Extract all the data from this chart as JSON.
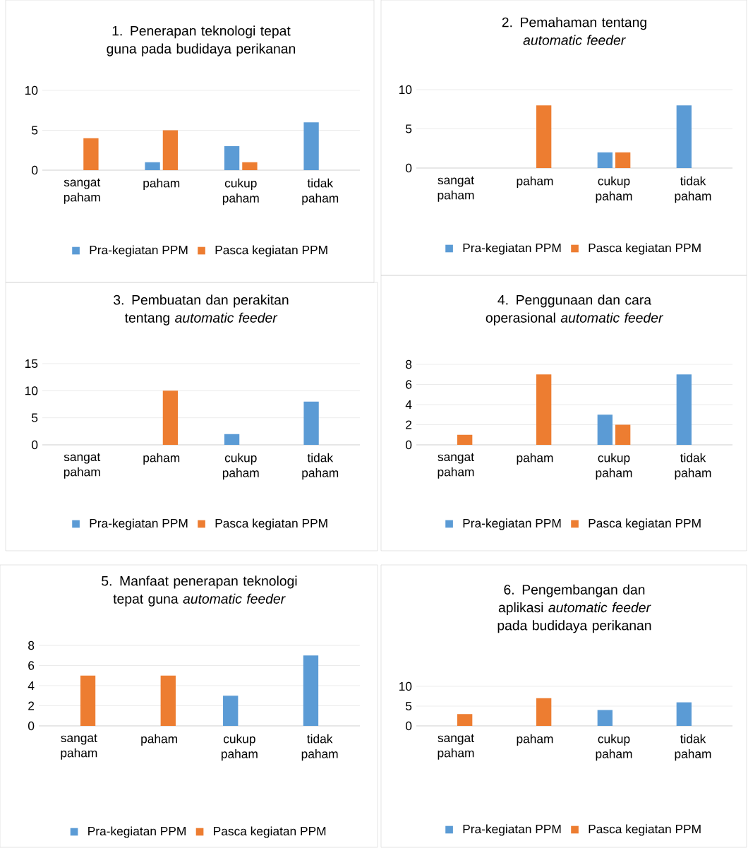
{
  "chart_data": [
    {
      "type": "bar",
      "title": "1. Penerapan teknologi tepat guna pada budidaya perikanan",
      "categories": [
        "sangat paham",
        "paham",
        "cukup paham",
        "tidak paham"
      ],
      "series": [
        {
          "name": "Pra-kegiatan PPM",
          "color": "#5b9bd5",
          "values": [
            0,
            1,
            3,
            6
          ]
        },
        {
          "name": "Pasca kegiatan PPM",
          "color": "#ed7d31",
          "values": [
            4,
            5,
            1,
            0
          ]
        }
      ],
      "ylim": [
        0,
        10
      ],
      "yticks": [
        0,
        5,
        10
      ],
      "grid": "y",
      "legend": "bottom"
    },
    {
      "type": "bar",
      "title": "2. Pemahaman tentang *automatic feeder*",
      "categories": [
        "sangat paham",
        "paham",
        "cukup paham",
        "tidak paham"
      ],
      "series": [
        {
          "name": "Pra-kegiatan PPM",
          "color": "#5b9bd5",
          "values": [
            0,
            0,
            2,
            8
          ]
        },
        {
          "name": "Pasca kegiatan PPM",
          "color": "#ed7d31",
          "values": [
            0,
            8,
            2,
            0
          ]
        }
      ],
      "ylim": [
        0,
        10
      ],
      "yticks": [
        0,
        5,
        10
      ],
      "grid": "y",
      "legend": "bottom"
    },
    {
      "type": "bar",
      "title": "3. Pembuatan dan perakitan tentang *automatic feeder*",
      "categories": [
        "sangat paham",
        "paham",
        "cukup paham",
        "tidak paham"
      ],
      "series": [
        {
          "name": "Pra-kegiatan PPM",
          "color": "#5b9bd5",
          "values": [
            0,
            0,
            2,
            8
          ]
        },
        {
          "name": "Pasca kegiatan PPM",
          "color": "#ed7d31",
          "values": [
            0,
            10,
            0,
            0
          ]
        }
      ],
      "ylim": [
        0,
        15
      ],
      "yticks": [
        0,
        5,
        10,
        15
      ],
      "grid": "y",
      "legend": "bottom"
    },
    {
      "type": "bar",
      "title": "4. Penggunaan dan cara operasional *automatic feeder*",
      "categories": [
        "sangat paham",
        "paham",
        "cukup paham",
        "tidak paham"
      ],
      "series": [
        {
          "name": "Pra-kegiatan PPM",
          "color": "#5b9bd5",
          "values": [
            0,
            0,
            3,
            7
          ]
        },
        {
          "name": "Pasca kegiatan PPM",
          "color": "#ed7d31",
          "values": [
            1,
            7,
            2,
            0
          ]
        }
      ],
      "ylim": [
        0,
        8
      ],
      "yticks": [
        0,
        2,
        4,
        6,
        8
      ],
      "grid": "y",
      "legend": "bottom"
    },
    {
      "type": "bar",
      "title": "5. Manfaat penerapan teknologi tepat guna *automatic feeder*",
      "categories": [
        "sangat paham",
        "paham",
        "cukup paham",
        "tidak paham"
      ],
      "series": [
        {
          "name": "Pra-kegiatan PPM",
          "color": "#5b9bd5",
          "values": [
            0,
            0,
            3,
            7
          ]
        },
        {
          "name": "Pasca kegiatan PPM",
          "color": "#ed7d31",
          "values": [
            5,
            5,
            0,
            0
          ]
        }
      ],
      "ylim": [
        0,
        8
      ],
      "yticks": [
        0,
        2,
        4,
        6,
        8
      ],
      "grid": "y",
      "legend": "bottom"
    },
    {
      "type": "bar",
      "title": "6. Pengembangan dan aplikasi *automatic feeder* pada budidaya perikanan",
      "categories": [
        "sangat paham",
        "paham",
        "cukup paham",
        "tidak paham"
      ],
      "series": [
        {
          "name": "Pra-kegiatan PPM",
          "color": "#5b9bd5",
          "values": [
            0,
            0,
            4,
            6
          ]
        },
        {
          "name": "Pasca kegiatan PPM",
          "color": "#ed7d31",
          "values": [
            3,
            7,
            0,
            0
          ]
        }
      ],
      "ylim": [
        0,
        10
      ],
      "yticks": [
        0,
        5,
        10
      ],
      "grid": "y",
      "legend": "bottom"
    }
  ]
}
